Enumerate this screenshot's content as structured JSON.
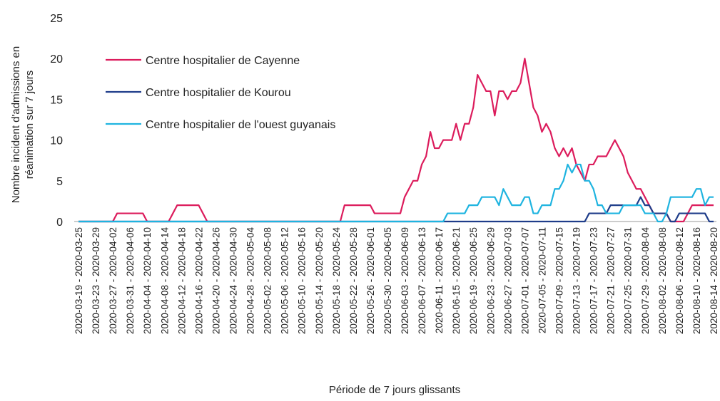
{
  "chart_data": {
    "type": "line",
    "ylabel": [
      "Nombre incident d'admissions en",
      "réanimation sur 7 jours"
    ],
    "xlabel": "Période de 7 jours glissants",
    "categories": [
      "2020-03-19 - 2020-03-25",
      null,
      null,
      null,
      "2020-03-23 - 2020-03-29",
      null,
      null,
      null,
      "2020-03-27 - 2020-04-02",
      null,
      null,
      null,
      "2020-03-31 - 2020-04-06",
      null,
      null,
      null,
      "2020-04-04 - 2020-04-10",
      null,
      null,
      null,
      "2020-04-08 - 2020-04-14",
      null,
      null,
      null,
      "2020-04-12 - 2020-04-18",
      null,
      null,
      null,
      "2020-04-16 - 2020-04-22",
      null,
      null,
      null,
      "2020-04-20 - 2020-04-26",
      null,
      null,
      null,
      "2020-04-24 - 2020-04-30",
      null,
      null,
      null,
      "2020-04-28 - 2020-05-04",
      null,
      null,
      null,
      "2020-05-02 - 2020-05-08",
      null,
      null,
      null,
      "2020-05-06 - 2020-05-12",
      null,
      null,
      null,
      "2020-05-10 - 2020-05-16",
      null,
      null,
      null,
      "2020-05-14 - 2020-05-20",
      null,
      null,
      null,
      "2020-05-18 - 2020-05-24",
      null,
      null,
      null,
      "2020-05-22 - 2020-05-28",
      null,
      null,
      null,
      "2020-05-26 - 2020-06-01",
      null,
      null,
      null,
      "2020-05-30 - 2020-06-05",
      null,
      null,
      null,
      "2020-06-03 - 2020-06-09",
      null,
      null,
      null,
      "2020-06-07 - 2020-06-13",
      null,
      null,
      null,
      "2020-06-11 - 2020-06-17",
      null,
      null,
      null,
      "2020-06-15 - 2020-06-21",
      null,
      null,
      null,
      "2020-06-19 - 2020-06-25",
      null,
      null,
      null,
      "2020-06-23 - 2020-06-29",
      null,
      null,
      null,
      "2020-06-27 - 2020-07-03",
      null,
      null,
      null,
      "2020-07-01 - 2020-07-07",
      null,
      null,
      null,
      "2020-07-05 - 2020-07-11",
      null,
      null,
      null,
      "2020-07-09 - 2020-07-15",
      null,
      null,
      null,
      "2020-07-13 - 2020-07-19",
      null,
      null,
      null,
      "2020-07-17 - 2020-07-23",
      null,
      null,
      null,
      "2020-07-21 - 2020-07-27",
      null,
      null,
      null,
      "2020-07-25 - 2020-07-31",
      null,
      null,
      null,
      "2020-07-29 - 2020-08-04",
      null,
      null,
      null,
      "2020-08-02 - 2020-08-08",
      null,
      null,
      null,
      "2020-08-06 - 2020-08-12",
      null,
      null,
      null,
      "2020-08-10 - 2020-08-16",
      null,
      null,
      null,
      "2020-08-14 - 2020-08-20"
    ],
    "series": [
      {
        "name": "Centre hospitalier de Cayenne",
        "color": "#dc1c5c",
        "values": [
          0,
          0,
          0,
          0,
          0,
          0,
          0,
          0,
          0,
          1,
          1,
          1,
          1,
          1,
          1,
          1,
          0,
          0,
          0,
          0,
          0,
          0,
          1,
          2,
          2,
          2,
          2,
          2,
          2,
          1,
          0,
          0,
          0,
          0,
          0,
          0,
          0,
          0,
          0,
          0,
          0,
          0,
          0,
          0,
          0,
          0,
          0,
          0,
          0,
          0,
          0,
          0,
          0,
          0,
          0,
          0,
          0,
          0,
          0,
          0,
          0,
          0,
          2,
          2,
          2,
          2,
          2,
          2,
          2,
          1,
          1,
          1,
          1,
          1,
          1,
          1,
          3,
          4,
          5,
          5,
          7,
          8,
          11,
          9,
          9,
          10,
          10,
          10,
          12,
          10,
          12,
          12,
          14,
          18,
          17,
          16,
          16,
          13,
          16,
          16,
          15,
          16,
          16,
          17,
          20,
          17,
          14,
          13,
          11,
          12,
          11,
          9,
          8,
          9,
          8,
          9,
          7,
          6,
          5,
          7,
          7,
          8,
          8,
          8,
          9,
          10,
          9,
          8,
          6,
          5,
          4,
          4,
          3,
          2,
          1,
          1,
          1,
          1,
          0,
          0,
          0,
          0,
          1,
          2,
          2,
          2,
          2,
          2,
          2
        ]
      },
      {
        "name": "Centre hospitalier de Kourou",
        "color": "#1f3d8a",
        "values": [
          0,
          0,
          0,
          0,
          0,
          0,
          0,
          0,
          0,
          0,
          0,
          0,
          0,
          0,
          0,
          0,
          0,
          0,
          0,
          0,
          0,
          0,
          0,
          0,
          0,
          0,
          0,
          0,
          0,
          0,
          0,
          0,
          0,
          0,
          0,
          0,
          0,
          0,
          0,
          0,
          0,
          0,
          0,
          0,
          0,
          0,
          0,
          0,
          0,
          0,
          0,
          0,
          0,
          0,
          0,
          0,
          0,
          0,
          0,
          0,
          0,
          0,
          0,
          0,
          0,
          0,
          0,
          0,
          0,
          0,
          0,
          0,
          0,
          0,
          0,
          0,
          0,
          0,
          0,
          0,
          0,
          0,
          0,
          0,
          0,
          0,
          0,
          0,
          0,
          0,
          0,
          0,
          0,
          0,
          0,
          0,
          0,
          0,
          0,
          0,
          0,
          0,
          0,
          0,
          0,
          0,
          0,
          0,
          0,
          0,
          0,
          0,
          0,
          0,
          0,
          0,
          0,
          0,
          0,
          1,
          1,
          1,
          1,
          1,
          2,
          2,
          2,
          2,
          2,
          2,
          2,
          3,
          2,
          2,
          1,
          1,
          1,
          1,
          0,
          0,
          1,
          1,
          1,
          1,
          1,
          1,
          1,
          0,
          0
        ]
      },
      {
        "name": "Centre hospitalier de l'ouest guyanais",
        "color": "#1fb4e0",
        "values": [
          0,
          0,
          0,
          0,
          0,
          0,
          0,
          0,
          0,
          0,
          0,
          0,
          0,
          0,
          0,
          0,
          0,
          0,
          0,
          0,
          0,
          0,
          0,
          0,
          0,
          0,
          0,
          0,
          0,
          0,
          0,
          0,
          0,
          0,
          0,
          0,
          0,
          0,
          0,
          0,
          0,
          0,
          0,
          0,
          0,
          0,
          0,
          0,
          0,
          0,
          0,
          0,
          0,
          0,
          0,
          0,
          0,
          0,
          0,
          0,
          0,
          0,
          0,
          0,
          0,
          0,
          0,
          0,
          0,
          0,
          0,
          0,
          0,
          0,
          0,
          0,
          0,
          0,
          0,
          0,
          0,
          0,
          0,
          0,
          0,
          0,
          1,
          1,
          1,
          1,
          1,
          2,
          2,
          2,
          3,
          3,
          3,
          3,
          2,
          4,
          3,
          2,
          2,
          2,
          3,
          3,
          1,
          1,
          2,
          2,
          2,
          4,
          4,
          5,
          7,
          6,
          7,
          7,
          5,
          5,
          4,
          2,
          2,
          1,
          1,
          1,
          1,
          2,
          2,
          2,
          2,
          2,
          1,
          1,
          1,
          0,
          0,
          1,
          3,
          3,
          3,
          3,
          3,
          3,
          4,
          4,
          2,
          3,
          3
        ]
      }
    ],
    "ylim": [
      0,
      25
    ],
    "yticks": [
      0,
      5,
      10,
      15,
      20,
      25
    ],
    "grid": false,
    "legend": "top-left"
  }
}
